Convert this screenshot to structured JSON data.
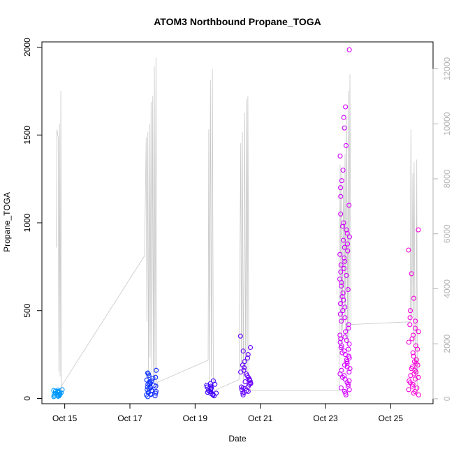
{
  "chart_data": {
    "type": "scatter",
    "title": "ATOM3 Northbound Propane_TOGA",
    "xlabel": "Date",
    "ylabel": "Propane_TOGA",
    "x_ticks": [
      {
        "day": 15,
        "label": "Oct 15"
      },
      {
        "day": 17,
        "label": "Oct 17"
      },
      {
        "day": 19,
        "label": "Oct 19"
      },
      {
        "day": 21,
        "label": "Oct 21"
      },
      {
        "day": 23,
        "label": "Oct 23"
      },
      {
        "day": 25,
        "label": "Oct 25"
      }
    ],
    "xlim": [
      14.3,
      26.3
    ],
    "ylim": [
      -30,
      2030
    ],
    "y_ticks": [
      0,
      500,
      1000,
      1500,
      2000
    ],
    "y2_ticks": [
      0,
      2000,
      4000,
      6000,
      8000,
      10000,
      12000
    ],
    "y2lim": [
      -180,
      12980
    ],
    "line_color": "#c8c8c8",
    "secondary_series_points": [
      [
        14.74,
        5500
      ],
      [
        14.76,
        9800
      ],
      [
        14.8,
        9500
      ],
      [
        14.82,
        1000
      ],
      [
        14.84,
        10000
      ],
      [
        14.86,
        800
      ],
      [
        14.88,
        11200
      ],
      [
        14.9,
        300
      ],
      [
        14.92,
        500
      ],
      [
        17.45,
        5200
      ],
      [
        17.5,
        9500
      ],
      [
        17.52,
        2800
      ],
      [
        17.55,
        9700
      ],
      [
        17.57,
        600
      ],
      [
        17.6,
        10000
      ],
      [
        17.62,
        1500
      ],
      [
        17.65,
        10800
      ],
      [
        17.67,
        900
      ],
      [
        17.7,
        11000
      ],
      [
        17.72,
        700
      ],
      [
        17.75,
        12100
      ],
      [
        17.77,
        500
      ],
      [
        17.8,
        12400
      ],
      [
        17.82,
        300
      ],
      [
        17.85,
        600
      ],
      [
        19.4,
        1400
      ],
      [
        19.42,
        9800
      ],
      [
        19.44,
        600
      ],
      [
        19.47,
        11600
      ],
      [
        19.5,
        800
      ],
      [
        19.53,
        12000
      ],
      [
        19.56,
        400
      ],
      [
        19.6,
        300
      ],
      [
        20.35,
        700
      ],
      [
        20.4,
        9300
      ],
      [
        20.42,
        1200
      ],
      [
        20.45,
        9700
      ],
      [
        20.48,
        600
      ],
      [
        20.52,
        10400
      ],
      [
        20.55,
        900
      ],
      [
        20.58,
        10900
      ],
      [
        20.6,
        1000
      ],
      [
        20.62,
        11000
      ],
      [
        20.65,
        500
      ],
      [
        20.7,
        300
      ],
      [
        23.42,
        300
      ],
      [
        23.45,
        8500
      ],
      [
        23.48,
        1800
      ],
      [
        23.5,
        8300
      ],
      [
        23.52,
        2500
      ],
      [
        23.55,
        7800
      ],
      [
        23.58,
        3000
      ],
      [
        23.6,
        8900
      ],
      [
        23.62,
        2200
      ],
      [
        23.65,
        10200
      ],
      [
        23.68,
        2000
      ],
      [
        23.7,
        11200
      ],
      [
        23.72,
        1600
      ],
      [
        23.75,
        11800
      ],
      [
        23.78,
        2700
      ],
      [
        25.6,
        2800
      ],
      [
        25.62,
        9800
      ],
      [
        25.65,
        3000
      ],
      [
        25.68,
        8200
      ],
      [
        25.7,
        2000
      ],
      [
        25.72,
        8600
      ],
      [
        25.75,
        1500
      ],
      [
        25.78,
        400
      ],
      [
        25.8,
        8700
      ],
      [
        25.82,
        200
      ]
    ],
    "primary_series": [
      {
        "day": 14.8,
        "values": [
          12,
          18,
          25,
          30,
          35,
          40,
          45,
          50,
          15,
          20,
          28,
          32,
          22,
          10,
          38,
          42,
          26,
          14,
          33,
          47
        ]
      },
      {
        "day": 17.65,
        "values": [
          10,
          20,
          30,
          40,
          50,
          60,
          70,
          80,
          90,
          100,
          115,
          130,
          145,
          160,
          25,
          35,
          45,
          55,
          65,
          75,
          85,
          95,
          105,
          120,
          140,
          15,
          22,
          33,
          44,
          66
        ]
      },
      {
        "day": 19.5,
        "values": [
          15,
          25,
          35,
          45,
          55,
          65,
          75,
          85,
          100,
          20,
          30,
          40,
          50,
          60,
          70,
          80,
          28,
          38
        ]
      },
      {
        "day": 20.55,
        "values": [
          20,
          30,
          40,
          50,
          60,
          70,
          80,
          90,
          100,
          110,
          120,
          130,
          140,
          150,
          160,
          175,
          190,
          210,
          230,
          250,
          270,
          290,
          355,
          35,
          45,
          55,
          65,
          85,
          95,
          105
        ]
      },
      {
        "day": 23.6,
        "values": [
          20,
          40,
          60,
          80,
          100,
          120,
          140,
          160,
          180,
          200,
          220,
          240,
          260,
          280,
          300,
          320,
          340,
          360,
          380,
          400,
          420,
          440,
          460,
          480,
          500,
          520,
          540,
          560,
          580,
          600,
          620,
          640,
          660,
          680,
          700,
          720,
          740,
          760,
          780,
          800,
          820,
          840,
          860,
          880,
          900,
          920,
          940,
          960,
          980,
          1000,
          1050,
          1100,
          1150,
          1200,
          1240,
          1300,
          1380,
          1440,
          1540,
          1600,
          1660,
          1985,
          250,
          270,
          290,
          310,
          330,
          350,
          230,
          210,
          190,
          170,
          150,
          130,
          110,
          90,
          70,
          50,
          30
        ]
      },
      {
        "day": 25.7,
        "values": [
          20,
          40,
          60,
          80,
          100,
          120,
          140,
          160,
          180,
          200,
          220,
          240,
          260,
          280,
          300,
          320,
          340,
          360,
          380,
          400,
          420,
          440,
          460,
          500,
          570,
          710,
          845,
          960,
          30,
          50,
          70,
          90,
          110,
          130,
          150,
          170,
          190,
          210
        ]
      }
    ],
    "color_gradient": [
      "#00aaff",
      "#0055ff",
      "#3300ff",
      "#8800ff",
      "#dd00ff",
      "#ff00cc"
    ]
  }
}
